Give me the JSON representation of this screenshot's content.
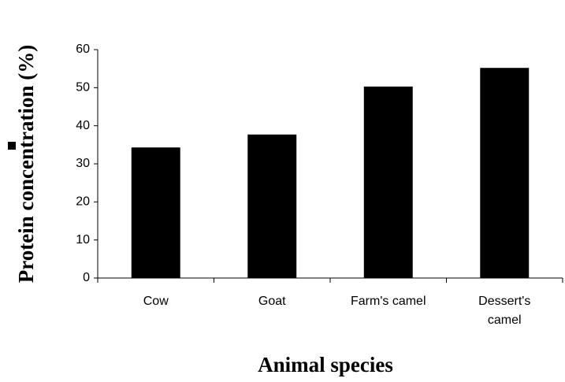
{
  "chart_data": {
    "type": "bar",
    "x_label": "Animal species",
    "y_label": "Protein concentration (%)",
    "categories": [
      "Cow",
      "Goat",
      "Farm's camel",
      "Dessert's camel"
    ],
    "values": [
      34.3,
      37.7,
      50.3,
      55.2
    ],
    "color": "#000000",
    "ylim": [
      0,
      60
    ],
    "yticks": [
      0,
      10,
      20,
      30,
      40,
      50,
      60
    ]
  }
}
